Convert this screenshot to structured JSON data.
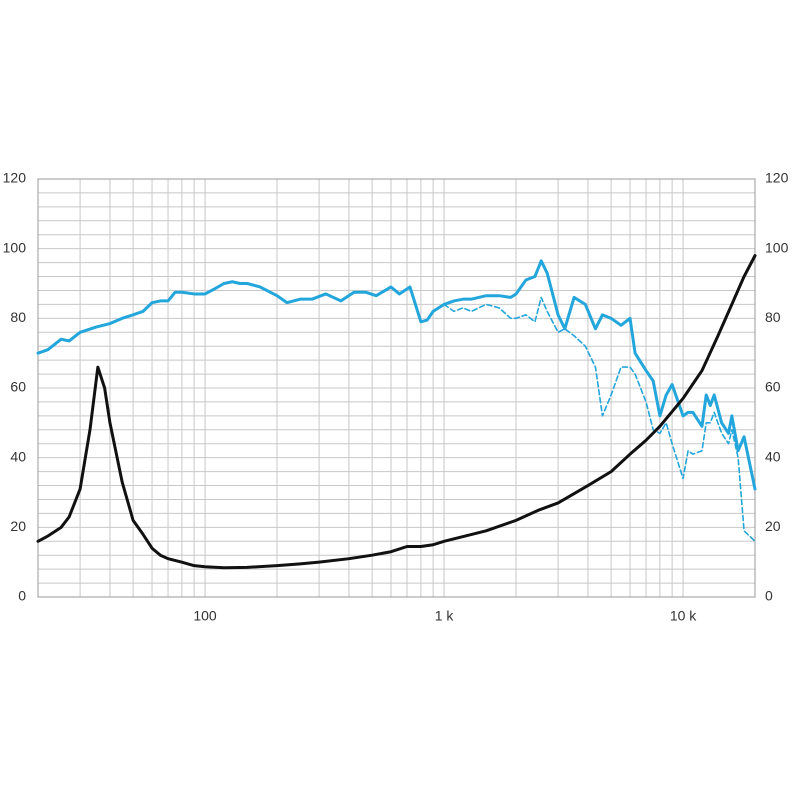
{
  "chart_data": {
    "type": "line",
    "xscale": "log",
    "xlim": [
      20,
      20000
    ],
    "xticks": [
      100,
      {
        "value": 1000,
        "label": "1 k"
      },
      {
        "value": 10000,
        "label": "10 k"
      }
    ],
    "xminor_ticks": [
      20,
      30,
      40,
      50,
      60,
      70,
      80,
      90,
      200,
      300,
      400,
      500,
      600,
      700,
      800,
      900,
      2000,
      3000,
      4000,
      5000,
      6000,
      7000,
      8000,
      9000,
      20000
    ],
    "ylim": [
      0,
      120
    ],
    "yticks": [
      0,
      20,
      40,
      60,
      80,
      100,
      120
    ],
    "yminor_ticks": [
      4,
      8,
      12,
      16,
      24,
      28,
      32,
      36,
      44,
      48,
      52,
      56,
      64,
      68,
      72,
      76,
      84,
      88,
      92,
      96,
      104,
      108,
      112,
      116
    ],
    "y2lim": [
      0,
      120
    ],
    "y2ticks": [
      0,
      20,
      40,
      60,
      80,
      100,
      120
    ],
    "grid": true,
    "series": [
      {
        "color": "#23a6dc",
        "width": 3,
        "dash": false,
        "x": [
          20,
          22,
          25,
          27,
          30,
          35,
          40,
          45,
          50,
          55,
          60,
          65,
          70,
          75,
          80,
          90,
          100,
          110,
          120,
          130,
          140,
          150,
          170,
          200,
          220,
          250,
          280,
          320,
          370,
          420,
          470,
          520,
          600,
          650,
          720,
          800,
          850,
          900,
          1000,
          1100,
          1200,
          1300,
          1500,
          1700,
          1900,
          2000,
          2200,
          2400,
          2550,
          2700,
          3000,
          3200,
          3500,
          3900,
          4300,
          4600,
          5000,
          5500,
          6000,
          6300,
          7000,
          7500,
          8000,
          8500,
          9000,
          10000,
          10500,
          11000,
          12000,
          12500,
          13000,
          13500,
          14500,
          15500,
          16000,
          17000,
          18000,
          20000
        ],
        "values": [
          70,
          71,
          74,
          73.5,
          76,
          77.5,
          78.5,
          80,
          81,
          82,
          84.5,
          85,
          85,
          87.5,
          87.5,
          87,
          87,
          88.5,
          90,
          90.5,
          90,
          90,
          89,
          86.5,
          84.5,
          85.5,
          85.5,
          87,
          85,
          87.5,
          87.5,
          86.5,
          89,
          87,
          89,
          79,
          79.5,
          82,
          84,
          85,
          85.5,
          85.5,
          86.5,
          86.5,
          86,
          87,
          91,
          92,
          96.5,
          93,
          81,
          77,
          86,
          84,
          77,
          81,
          80,
          78,
          80,
          70,
          65,
          62,
          52,
          58,
          61,
          52,
          53,
          53,
          49,
          58,
          55,
          58,
          50,
          47,
          52,
          42,
          46,
          31
        ]
      },
      {
        "color": "#23a6dc",
        "width": 1.6,
        "dash": true,
        "x": [
          1000,
          1100,
          1200,
          1300,
          1500,
          1700,
          1900,
          2000,
          2200,
          2400,
          2550,
          2700,
          3000,
          3200,
          3500,
          3900,
          4300,
          4600,
          5000,
          5500,
          6000,
          6300,
          7000,
          7500,
          8000,
          8500,
          9000,
          10000,
          10500,
          11000,
          12000,
          12500,
          13000,
          13500,
          14500,
          15500,
          16000,
          17000,
          18000,
          20000
        ],
        "values": [
          84,
          82,
          83,
          82,
          84,
          83,
          80,
          80,
          81,
          79,
          86,
          82,
          76,
          77,
          75,
          72,
          66,
          52,
          58,
          66,
          66,
          64,
          56,
          48,
          47,
          50,
          44,
          34,
          42,
          41,
          42,
          50,
          50,
          53,
          47,
          44,
          48,
          40,
          19,
          16
        ]
      },
      {
        "color": "#111111",
        "width": 3,
        "dash": false,
        "axis": "y2",
        "x": [
          20,
          22,
          25,
          27,
          30,
          33,
          35.6,
          38,
          40,
          45,
          50,
          55,
          60,
          65,
          70,
          80,
          90,
          100,
          120,
          150,
          200,
          250,
          300,
          400,
          500,
          600,
          700,
          800,
          900,
          1000,
          1500,
          2000,
          2500,
          3000,
          4000,
          5000,
          6000,
          7000,
          8000,
          10000,
          12000,
          14000,
          16000,
          18000,
          20000
        ],
        "values": [
          16,
          17.5,
          20,
          23,
          31,
          48,
          66,
          60,
          50,
          33,
          22,
          18,
          14,
          12,
          11,
          10,
          9,
          8.7,
          8.4,
          8.5,
          9,
          9.5,
          10,
          11,
          12,
          13,
          14.5,
          14.5,
          15,
          16,
          19,
          22,
          25,
          27,
          32,
          36,
          41,
          45,
          49,
          57,
          65,
          75,
          84,
          92,
          98
        ]
      }
    ]
  }
}
